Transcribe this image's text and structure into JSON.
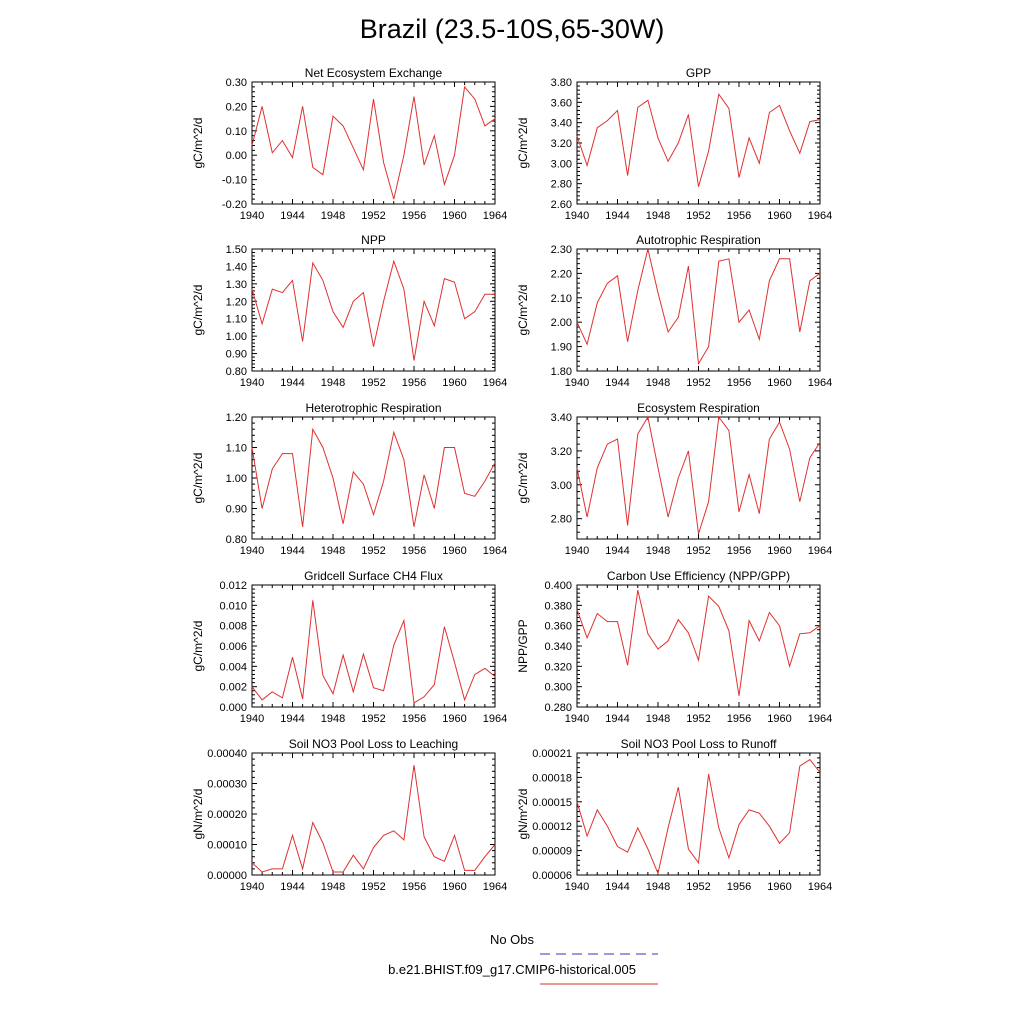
{
  "figure": {
    "title": "Brazil (23.5-10S,65-30W)"
  },
  "legend": {
    "items": [
      {
        "label": "No Obs",
        "color": "#3333cc",
        "dash": true
      },
      {
        "label": "b.e21.BHIST.f09_g17.CMIP6-historical.005",
        "color": "#e03030",
        "dash": false
      }
    ]
  },
  "chart_data": [
    {
      "type": "line",
      "title": "Net Ecosystem Exchange",
      "ylabel": "gC/m^2/d",
      "xlim": [
        1940,
        1964
      ],
      "ylim": [
        -0.2,
        0.3
      ],
      "decimals": 2,
      "xticks": [
        1940,
        1944,
        1948,
        1952,
        1956,
        1960,
        1964
      ],
      "yticks": [
        -0.2,
        -0.1,
        0.0,
        0.1,
        0.2,
        0.3
      ],
      "x": [
        1940,
        1941,
        1942,
        1943,
        1944,
        1945,
        1946,
        1947,
        1948,
        1949,
        1950,
        1951,
        1952,
        1953,
        1954,
        1955,
        1956,
        1957,
        1958,
        1959,
        1960,
        1961,
        1962,
        1963,
        1964
      ],
      "series": [
        {
          "color": "#e03030",
          "values": [
            0.04,
            0.2,
            0.01,
            0.06,
            -0.01,
            0.2,
            -0.05,
            -0.08,
            0.16,
            0.12,
            0.03,
            -0.06,
            0.23,
            -0.03,
            -0.18,
            0.0,
            0.24,
            -0.04,
            0.08,
            -0.12,
            0.0,
            0.28,
            0.23,
            0.12,
            0.15
          ]
        }
      ]
    },
    {
      "type": "line",
      "title": "GPP",
      "ylabel": "gC/m^2/d",
      "xlim": [
        1940,
        1964
      ],
      "ylim": [
        2.6,
        3.8
      ],
      "decimals": 2,
      "xticks": [
        1940,
        1944,
        1948,
        1952,
        1956,
        1960,
        1964
      ],
      "yticks": [
        2.6,
        2.8,
        3.0,
        3.2,
        3.4,
        3.6,
        3.8
      ],
      "x": [
        1940,
        1941,
        1942,
        1943,
        1944,
        1945,
        1946,
        1947,
        1948,
        1949,
        1950,
        1951,
        1952,
        1953,
        1954,
        1955,
        1956,
        1957,
        1958,
        1959,
        1960,
        1961,
        1962,
        1963,
        1964
      ],
      "series": [
        {
          "color": "#e03030",
          "values": [
            3.27,
            2.98,
            3.35,
            3.42,
            3.52,
            2.88,
            3.55,
            3.62,
            3.25,
            3.02,
            3.2,
            3.48,
            2.77,
            3.12,
            3.68,
            3.54,
            2.86,
            3.25,
            3.0,
            3.5,
            3.57,
            3.32,
            3.1,
            3.41,
            3.43
          ]
        }
      ]
    },
    {
      "type": "line",
      "title": "NPP",
      "ylabel": "gC/m^2/d",
      "xlim": [
        1940,
        1964
      ],
      "ylim": [
        0.8,
        1.5
      ],
      "decimals": 2,
      "xticks": [
        1940,
        1944,
        1948,
        1952,
        1956,
        1960,
        1964
      ],
      "yticks": [
        0.8,
        0.9,
        1.0,
        1.1,
        1.2,
        1.3,
        1.4,
        1.5
      ],
      "x": [
        1940,
        1941,
        1942,
        1943,
        1944,
        1945,
        1946,
        1947,
        1948,
        1949,
        1950,
        1951,
        1952,
        1953,
        1954,
        1955,
        1956,
        1957,
        1958,
        1959,
        1960,
        1961,
        1962,
        1963,
        1964
      ],
      "series": [
        {
          "color": "#e03030",
          "values": [
            1.27,
            1.07,
            1.27,
            1.25,
            1.32,
            0.97,
            1.42,
            1.32,
            1.14,
            1.05,
            1.2,
            1.25,
            0.94,
            1.2,
            1.43,
            1.27,
            0.86,
            1.2,
            1.06,
            1.33,
            1.31,
            1.1,
            1.14,
            1.24,
            1.24
          ]
        }
      ]
    },
    {
      "type": "line",
      "title": "Autotrophic Respiration",
      "ylabel": "gC/m^2/d",
      "xlim": [
        1940,
        1964
      ],
      "ylim": [
        1.8,
        2.3
      ],
      "decimals": 2,
      "xticks": [
        1940,
        1944,
        1948,
        1952,
        1956,
        1960,
        1964
      ],
      "yticks": [
        1.8,
        1.9,
        2.0,
        2.1,
        2.2,
        2.3
      ],
      "x": [
        1940,
        1941,
        1942,
        1943,
        1944,
        1945,
        1946,
        1947,
        1948,
        1949,
        1950,
        1951,
        1952,
        1953,
        1954,
        1955,
        1956,
        1957,
        1958,
        1959,
        1960,
        1961,
        1962,
        1963,
        1964
      ],
      "series": [
        {
          "color": "#e03030",
          "values": [
            2.0,
            1.91,
            2.08,
            2.16,
            2.19,
            1.92,
            2.13,
            2.3,
            2.12,
            1.96,
            2.02,
            2.23,
            1.83,
            1.9,
            2.25,
            2.26,
            2.0,
            2.05,
            1.93,
            2.17,
            2.26,
            2.26,
            1.96,
            2.17,
            2.2
          ]
        }
      ]
    },
    {
      "type": "line",
      "title": "Heterotrophic Respiration",
      "ylabel": "gC/m^2/d",
      "xlim": [
        1940,
        1964
      ],
      "ylim": [
        0.8,
        1.2
      ],
      "decimals": 2,
      "xticks": [
        1940,
        1944,
        1948,
        1952,
        1956,
        1960,
        1964
      ],
      "yticks": [
        0.8,
        0.9,
        1.0,
        1.1,
        1.2
      ],
      "x": [
        1940,
        1941,
        1942,
        1943,
        1944,
        1945,
        1946,
        1947,
        1948,
        1949,
        1950,
        1951,
        1952,
        1953,
        1954,
        1955,
        1956,
        1957,
        1958,
        1959,
        1960,
        1961,
        1962,
        1963,
        1964
      ],
      "series": [
        {
          "color": "#e03030",
          "values": [
            1.1,
            0.9,
            1.03,
            1.08,
            1.08,
            0.84,
            1.16,
            1.1,
            1.0,
            0.85,
            1.02,
            0.98,
            0.88,
            0.99,
            1.15,
            1.06,
            0.84,
            1.01,
            0.9,
            1.1,
            1.1,
            0.95,
            0.94,
            0.99,
            1.05
          ]
        }
      ]
    },
    {
      "type": "line",
      "title": "Ecosystem Respiration",
      "ylabel": "gC/m^2/d",
      "xlim": [
        1940,
        1964
      ],
      "ylim": [
        2.68,
        3.4
      ],
      "decimals": 2,
      "xticks": [
        1940,
        1944,
        1948,
        1952,
        1956,
        1960,
        1964
      ],
      "yticks": [
        2.8,
        3.0,
        3.2,
        3.4
      ],
      "x": [
        1940,
        1941,
        1942,
        1943,
        1944,
        1945,
        1946,
        1947,
        1948,
        1949,
        1950,
        1951,
        1952,
        1953,
        1954,
        1955,
        1956,
        1957,
        1958,
        1959,
        1960,
        1961,
        1962,
        1963,
        1964
      ],
      "series": [
        {
          "color": "#e03030",
          "values": [
            3.1,
            2.81,
            3.1,
            3.24,
            3.27,
            2.76,
            3.3,
            3.4,
            3.1,
            2.81,
            3.04,
            3.2,
            2.71,
            2.9,
            3.4,
            3.32,
            2.84,
            3.06,
            2.83,
            3.27,
            3.37,
            3.21,
            2.9,
            3.16,
            3.25
          ]
        }
      ]
    },
    {
      "type": "line",
      "title": "Gridcell Surface CH4 Flux",
      "ylabel": "gC/m^2/d",
      "xlim": [
        1940,
        1964
      ],
      "ylim": [
        0.0,
        0.012
      ],
      "decimals": 3,
      "xticks": [
        1940,
        1944,
        1948,
        1952,
        1956,
        1960,
        1964
      ],
      "yticks": [
        0.0,
        0.002,
        0.004,
        0.006,
        0.008,
        0.01,
        0.012
      ],
      "x": [
        1940,
        1941,
        1942,
        1943,
        1944,
        1945,
        1946,
        1947,
        1948,
        1949,
        1950,
        1951,
        1952,
        1953,
        1954,
        1955,
        1956,
        1957,
        1958,
        1959,
        1960,
        1961,
        1962,
        1963,
        1964
      ],
      "series": [
        {
          "color": "#e03030",
          "values": [
            0.002,
            0.0007,
            0.0015,
            0.0009,
            0.0049,
            0.0008,
            0.0105,
            0.0031,
            0.0013,
            0.0051,
            0.0015,
            0.0052,
            0.0019,
            0.0016,
            0.0061,
            0.0085,
            0.0004,
            0.001,
            0.0022,
            0.0079,
            0.0044,
            0.0007,
            0.0032,
            0.0038,
            0.003
          ]
        }
      ]
    },
    {
      "type": "line",
      "title": "Carbon Use Efficiency (NPP/GPP)",
      "ylabel": "NPP/GPP",
      "xlim": [
        1940,
        1964
      ],
      "ylim": [
        0.28,
        0.4
      ],
      "decimals": 3,
      "xticks": [
        1940,
        1944,
        1948,
        1952,
        1956,
        1960,
        1964
      ],
      "yticks": [
        0.28,
        0.3,
        0.32,
        0.34,
        0.36,
        0.38,
        0.4
      ],
      "x": [
        1940,
        1941,
        1942,
        1943,
        1944,
        1945,
        1946,
        1947,
        1948,
        1949,
        1950,
        1951,
        1952,
        1953,
        1954,
        1955,
        1956,
        1957,
        1958,
        1959,
        1960,
        1961,
        1962,
        1963,
        1964
      ],
      "series": [
        {
          "color": "#e03030",
          "values": [
            0.376,
            0.348,
            0.372,
            0.364,
            0.364,
            0.321,
            0.395,
            0.352,
            0.337,
            0.345,
            0.366,
            0.353,
            0.326,
            0.389,
            0.379,
            0.355,
            0.291,
            0.365,
            0.345,
            0.373,
            0.36,
            0.32,
            0.352,
            0.353,
            0.36
          ]
        }
      ]
    },
    {
      "type": "line",
      "title": "Soil NO3 Pool Loss to Leaching",
      "ylabel": "gN/m^2/d",
      "xlim": [
        1940,
        1964
      ],
      "ylim": [
        0.0,
        0.0004
      ],
      "decimals": 5,
      "xticks": [
        1940,
        1944,
        1948,
        1952,
        1956,
        1960,
        1964
      ],
      "yticks": [
        0.0,
        0.0001,
        0.0002,
        0.0003,
        0.0004
      ],
      "x": [
        1940,
        1941,
        1942,
        1943,
        1944,
        1945,
        1946,
        1947,
        1948,
        1949,
        1950,
        1951,
        1952,
        1953,
        1954,
        1955,
        1956,
        1957,
        1958,
        1959,
        1960,
        1961,
        1962,
        1963,
        1964
      ],
      "series": [
        {
          "color": "#e03030",
          "values": [
            4e-05,
            1e-05,
            2e-05,
            2e-05,
            0.00013,
            2e-05,
            0.000172,
            0.000105,
            1e-05,
            1e-05,
            6.5e-05,
            2e-05,
            9e-05,
            0.00013,
            0.000145,
            0.000115,
            0.00036,
            0.000125,
            6e-05,
            4.5e-05,
            0.00013,
            1.5e-05,
            1.5e-05,
            6e-05,
            0.0001
          ]
        }
      ]
    },
    {
      "type": "line",
      "title": "Soil NO3 Pool Loss to Runoff",
      "ylabel": "gN/m^2/d",
      "xlim": [
        1940,
        1964
      ],
      "ylim": [
        6e-05,
        0.00021
      ],
      "decimals": 5,
      "xticks": [
        1940,
        1944,
        1948,
        1952,
        1956,
        1960,
        1964
      ],
      "yticks": [
        6e-05,
        9e-05,
        0.00012,
        0.00015,
        0.00018,
        0.00021
      ],
      "x": [
        1940,
        1941,
        1942,
        1943,
        1944,
        1945,
        1946,
        1947,
        1948,
        1949,
        1950,
        1951,
        1952,
        1953,
        1954,
        1955,
        1956,
        1957,
        1958,
        1959,
        1960,
        1961,
        1962,
        1963,
        1964
      ],
      "series": [
        {
          "color": "#e03030",
          "values": [
            0.00015,
            0.000108,
            0.00014,
            0.00012,
            9.5e-05,
            8.8e-05,
            0.000118,
            9.2e-05,
            6.2e-05,
            0.000118,
            0.000168,
            9.2e-05,
            7.5e-05,
            0.000184,
            0.000118,
            8.1e-05,
            0.000122,
            0.00014,
            0.000136,
            0.00012,
            9.9e-05,
            0.000112,
            0.000194,
            0.000202,
            0.000186
          ]
        }
      ]
    }
  ]
}
